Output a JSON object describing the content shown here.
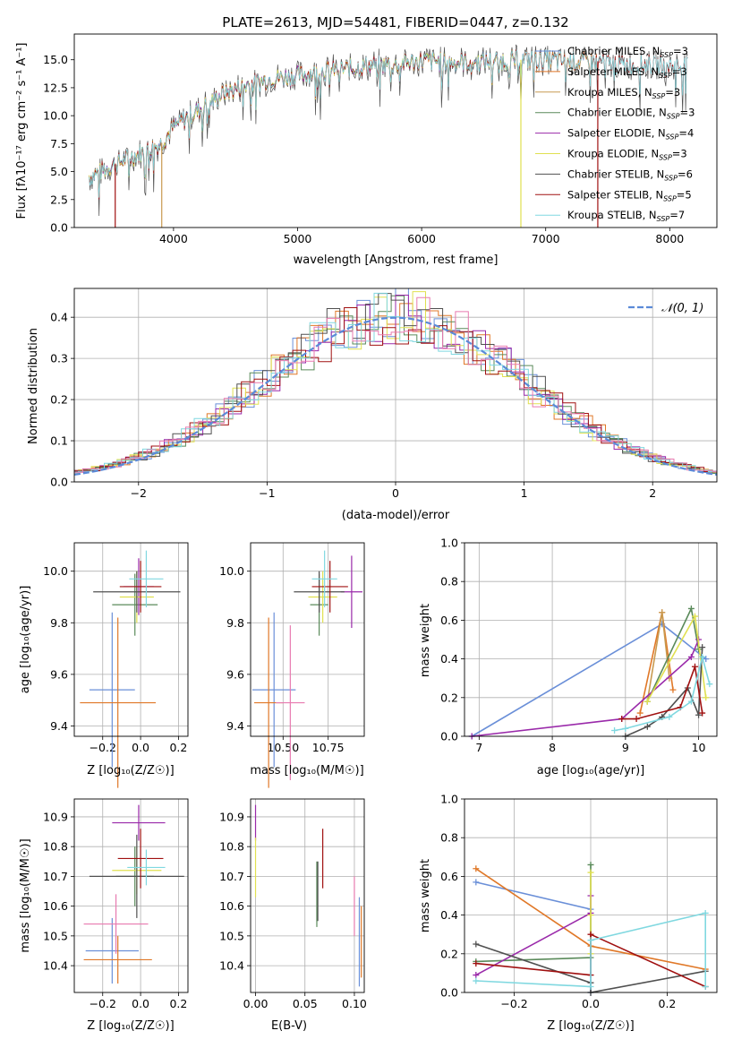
{
  "figure_title": "PLATE=2613, MJD=54481, FIBERID=0447, z=0.132",
  "colors": {
    "Chabrier MILES": "#6a8fd8",
    "Salpeter MILES": "#e07828",
    "Kroupa MILES": "#c89a50",
    "Chabrier ELODIE": "#5a8a5a",
    "Salpeter ELODIE": "#9a2aaa",
    "Kroupa ELODIE": "#e0e050",
    "Chabrier STELIB": "#505050",
    "Salpeter STELIB": "#a01010",
    "Kroupa STELIB": "#80d8e0",
    "pink": "#e87ab0",
    "gaussian": "#5a8ad8"
  },
  "chart_data": [
    {
      "type": "line",
      "title": "PLATE=2613, MJD=54481, FIBERID=0447, z=0.132",
      "xlabel": "wavelength [Angstrom, rest frame]",
      "ylabel": "Flux [f",
      "ylabel_full": "Flux [fλ10⁻¹⁷ erg cm⁻² s⁻¹ A⁻¹]",
      "xlim": [
        3200,
        8380
      ],
      "ylim": [
        0,
        17.3
      ],
      "xticks": [
        4000,
        5000,
        6000,
        7000,
        8000
      ],
      "yticks": [
        0.0,
        2.5,
        5.0,
        7.5,
        10.0,
        12.5,
        15.0
      ],
      "spectrum_anchor_x": [
        3320,
        3500,
        3700,
        3900,
        4000,
        4200,
        4400,
        4600,
        4800,
        5000,
        5200,
        5400,
        5600,
        5800,
        6000,
        6200,
        6400,
        6600,
        6800,
        7000,
        7200,
        7400,
        7600,
        7800,
        8000,
        8150
      ],
      "spectrum_anchor_y": [
        4.5,
        5.5,
        6.5,
        7.5,
        9.0,
        10.5,
        12.0,
        12.8,
        13.3,
        13.6,
        14.0,
        14.2,
        14.5,
        14.6,
        14.9,
        14.8,
        14.8,
        14.9,
        15.0,
        15.0,
        14.8,
        14.9,
        14.6,
        14.6,
        14.5,
        14.4
      ],
      "series": [
        {
          "name": "Chabrier MILES, N",
          "sub": "SSP",
          "suffix": "=3",
          "key": "Chabrier MILES",
          "x_end": 7420
        },
        {
          "name": "Salpeter MILES, N",
          "sub": "SSP",
          "suffix": "=3",
          "key": "Salpeter MILES",
          "x_end": 7420
        },
        {
          "name": "Kroupa MILES, N",
          "sub": "SSP",
          "suffix": "=3",
          "key": "Kroupa MILES",
          "x_end": 7420
        },
        {
          "name": "Chabrier ELODIE, N",
          "sub": "SSP",
          "suffix": "=3",
          "key": "Chabrier ELODIE",
          "x_end": 6800
        },
        {
          "name": "Salpeter ELODIE, N",
          "sub": "SSP",
          "suffix": "=4",
          "key": "Salpeter ELODIE",
          "x_end": 6800
        },
        {
          "name": "Kroupa ELODIE, N",
          "sub": "SSP",
          "suffix": "=3",
          "key": "Kroupa ELODIE",
          "x_end": 6800
        },
        {
          "name": "Chabrier STELIB, N",
          "sub": "SSP",
          "suffix": "=6",
          "key": "Chabrier STELIB",
          "x_end": 8150
        },
        {
          "name": "Salpeter STELIB, N",
          "sub": "SSP",
          "suffix": "=5",
          "key": "Salpeter STELIB",
          "x_end": 8150
        },
        {
          "name": "Kroupa STELIB, N",
          "sub": "SSP",
          "suffix": "=7",
          "key": "Kroupa STELIB",
          "x_end": 8150
        }
      ]
    },
    {
      "type": "line",
      "xlabel": "(data-model)/error",
      "ylabel": "Normed distribution",
      "xlim": [
        -2.5,
        2.5
      ],
      "ylim": [
        0,
        0.47
      ],
      "xticks": [
        -2,
        -1,
        0,
        1,
        2
      ],
      "yticks": [
        0.0,
        0.1,
        0.2,
        0.3,
        0.4
      ],
      "grid": true,
      "legend": "top-right",
      "legend_label": "𝒩(0, 1)",
      "bin_width": 0.1
    },
    {
      "type": "scatter",
      "xlabel": "Z [log₁₀(Z/Z☉)]",
      "ylabel": "age  [log₁₀(age/yr)]",
      "xlim": [
        -0.35,
        0.25
      ],
      "ylim": [
        9.36,
        10.11
      ],
      "xticks": [
        -0.2,
        0.0,
        0.2
      ],
      "yticks": [
        9.4,
        9.6,
        9.8,
        10.0
      ],
      "grid": true,
      "points": [
        {
          "key": "Chabrier MILES",
          "x": -0.15,
          "y": 9.54,
          "xerr": 0.12,
          "yerr": 0.3
        },
        {
          "key": "Salpeter MILES",
          "x": -0.12,
          "y": 9.49,
          "xerr": 0.2,
          "yerr": 0.33
        },
        {
          "key": "Chabrier ELODIE",
          "x": -0.03,
          "y": 9.87,
          "xerr": 0.12,
          "yerr": 0.12
        },
        {
          "key": "Salpeter ELODIE",
          "x": -0.01,
          "y": 9.94,
          "xerr": 0.08,
          "yerr": 0.11
        },
        {
          "key": "Kroupa ELODIE",
          "x": -0.02,
          "y": 9.9,
          "xerr": 0.09,
          "yerr": 0.1
        },
        {
          "key": "Chabrier STELIB",
          "x": -0.02,
          "y": 9.92,
          "xerr": 0.23,
          "yerr": 0.08
        },
        {
          "key": "Salpeter STELIB",
          "x": 0.0,
          "y": 9.94,
          "xerr": 0.11,
          "yerr": 0.1
        },
        {
          "key": "Kroupa STELIB",
          "x": 0.03,
          "y": 9.97,
          "xerr": 0.09,
          "yerr": 0.11
        }
      ]
    },
    {
      "type": "scatter",
      "xlabel": "mass [log₁₀(M/M☉)]",
      "xlim": [
        10.32,
        10.95
      ],
      "ylim": [
        9.36,
        10.11
      ],
      "xticks": [
        10.5,
        10.75
      ],
      "yticks": [
        9.4,
        9.6,
        9.8,
        10.0
      ],
      "grid": true,
      "points": [
        {
          "key": "Chabrier MILES",
          "x": 10.45,
          "y": 9.54,
          "xerr": 0.12,
          "yerr": 0.3
        },
        {
          "key": "Salpeter MILES",
          "x": 10.42,
          "y": 9.49,
          "xerr": 0.08,
          "yerr": 0.33
        },
        {
          "key": "pink",
          "x": 10.54,
          "y": 9.49,
          "xerr": 0.08,
          "yerr": 0.3
        },
        {
          "key": "Chabrier ELODIE",
          "x": 10.7,
          "y": 9.87,
          "xerr": 0.05,
          "yerr": 0.12
        },
        {
          "key": "Salpeter ELODIE",
          "x": 10.88,
          "y": 9.92,
          "xerr": 0.06,
          "yerr": 0.14
        },
        {
          "key": "Kroupa ELODIE",
          "x": 10.72,
          "y": 9.9,
          "xerr": 0.08,
          "yerr": 0.1
        },
        {
          "key": "Chabrier STELIB",
          "x": 10.7,
          "y": 9.92,
          "xerr": 0.14,
          "yerr": 0.08
        },
        {
          "key": "Salpeter STELIB",
          "x": 10.76,
          "y": 9.94,
          "xerr": 0.1,
          "yerr": 0.1
        },
        {
          "key": "Kroupa STELIB",
          "x": 10.73,
          "y": 9.97,
          "xerr": 0.07,
          "yerr": 0.11
        }
      ]
    },
    {
      "type": "line",
      "xlabel": "age  [log₁₀(age/yr)]",
      "ylabel": "mass weight",
      "xlim": [
        6.8,
        10.25
      ],
      "ylim": [
        0,
        1.0
      ],
      "xticks": [
        7,
        8,
        9,
        10
      ],
      "yticks": [
        0.0,
        0.2,
        0.4,
        0.6,
        0.8,
        1.0
      ],
      "grid": true,
      "series": [
        {
          "key": "Chabrier MILES",
          "x": [
            6.9,
            9.5,
            10.1
          ],
          "y": [
            0.0,
            0.58,
            0.4
          ]
        },
        {
          "key": "Salpeter MILES",
          "x": [
            9.2,
            9.5,
            9.65
          ],
          "y": [
            0.12,
            0.64,
            0.24
          ]
        },
        {
          "key": "Kroupa MILES",
          "x": [
            9.3,
            9.5,
            9.6
          ],
          "y": [
            0.18,
            0.64,
            0.3
          ]
        },
        {
          "key": "Chabrier ELODIE",
          "x": [
            9.3,
            9.9,
            10.0
          ],
          "y": [
            0.18,
            0.66,
            0.45
          ]
        },
        {
          "key": "Salpeter ELODIE",
          "x": [
            6.9,
            8.95,
            9.9,
            10.0
          ],
          "y": [
            0.0,
            0.09,
            0.41,
            0.5
          ]
        },
        {
          "key": "Kroupa ELODIE",
          "x": [
            9.3,
            9.95,
            10.1
          ],
          "y": [
            0.18,
            0.62,
            0.2
          ]
        },
        {
          "key": "Chabrier STELIB",
          "x": [
            9.0,
            9.3,
            9.5,
            9.85,
            10.0,
            10.05
          ],
          "y": [
            0.0,
            0.05,
            0.1,
            0.25,
            0.11,
            0.46
          ]
        },
        {
          "key": "Salpeter STELIB",
          "x": [
            8.95,
            9.15,
            9.75,
            9.95,
            10.05
          ],
          "y": [
            0.09,
            0.09,
            0.15,
            0.36,
            0.12
          ]
        },
        {
          "key": "Kroupa STELIB",
          "x": [
            8.85,
            9.0,
            9.6,
            9.9,
            10.05,
            10.15
          ],
          "y": [
            0.03,
            0.04,
            0.1,
            0.18,
            0.41,
            0.27
          ]
        }
      ]
    },
    {
      "type": "scatter",
      "xlabel": "Z [log₁₀(Z/Z☉)]",
      "ylabel": "mass [log₁₀(M/M☉)]",
      "xlim": [
        -0.35,
        0.25
      ],
      "ylim": [
        10.31,
        10.96
      ],
      "xticks": [
        -0.2,
        0.0,
        0.2
      ],
      "yticks": [
        10.4,
        10.5,
        10.6,
        10.7,
        10.8,
        10.9
      ],
      "grid": true,
      "points": [
        {
          "key": "Chabrier MILES",
          "x": -0.15,
          "y": 10.45,
          "xerr": 0.14,
          "yerr": 0.11
        },
        {
          "key": "Salpeter MILES",
          "x": -0.12,
          "y": 10.42,
          "xerr": 0.18,
          "yerr": 0.08
        },
        {
          "key": "pink",
          "x": -0.13,
          "y": 10.54,
          "xerr": 0.17,
          "yerr": 0.1
        },
        {
          "key": "Chabrier ELODIE",
          "x": -0.03,
          "y": 10.7,
          "xerr": 0.1,
          "yerr": 0.1
        },
        {
          "key": "Salpeter ELODIE",
          "x": -0.01,
          "y": 10.88,
          "xerr": 0.14,
          "yerr": 0.06
        },
        {
          "key": "Kroupa ELODIE",
          "x": -0.02,
          "y": 10.72,
          "xerr": 0.13,
          "yerr": 0.08
        },
        {
          "key": "Chabrier STELIB",
          "x": -0.02,
          "y": 10.7,
          "xerr": 0.25,
          "yerr": 0.14
        },
        {
          "key": "Salpeter STELIB",
          "x": 0.0,
          "y": 10.76,
          "xerr": 0.12,
          "yerr": 0.1
        },
        {
          "key": "Kroupa STELIB",
          "x": 0.03,
          "y": 10.73,
          "xerr": 0.1,
          "yerr": 0.06
        }
      ]
    },
    {
      "type": "scatter",
      "xlabel": "E(B-V)",
      "xlim": [
        -0.005,
        0.11
      ],
      "ylim": [
        10.31,
        10.96
      ],
      "xticks": [
        0.0,
        0.05,
        0.1
      ],
      "yticks": [
        10.4,
        10.5,
        10.6,
        10.7,
        10.8,
        10.9
      ],
      "grid": true,
      "points": [
        {
          "key": "Salpeter ELODIE",
          "x": 0.0,
          "y": 10.88,
          "yerr": 0.06
        },
        {
          "key": "Kroupa ELODIE",
          "x": 0.0,
          "y": 10.73,
          "yerr": 0.1
        },
        {
          "key": "Chabrier ELODIE",
          "x": 0.062,
          "y": 10.64,
          "yerr": 0.11
        },
        {
          "key": "Chabrier STELIB",
          "x": 0.063,
          "y": 10.65,
          "yerr": 0.1
        },
        {
          "key": "Salpeter STELIB",
          "x": 0.068,
          "y": 10.76,
          "yerr": 0.1
        },
        {
          "key": "pink",
          "x": 0.1,
          "y": 10.6,
          "yerr": 0.1
        },
        {
          "key": "Chabrier MILES",
          "x": 0.105,
          "y": 10.48,
          "yerr": 0.15
        },
        {
          "key": "Salpeter MILES",
          "x": 0.107,
          "y": 10.48,
          "yerr": 0.12
        }
      ]
    },
    {
      "type": "line",
      "xlabel": "Z [log₁₀(Z/Z☉)]",
      "ylabel": "mass weight",
      "xlim": [
        -0.33,
        0.33
      ],
      "ylim": [
        0,
        1.0
      ],
      "xticks": [
        -0.2,
        0.0,
        0.2
      ],
      "yticks": [
        0.0,
        0.2,
        0.4,
        0.6,
        0.8,
        1.0
      ],
      "grid": true,
      "series": [
        {
          "key": "Chabrier MILES",
          "x": [
            -0.3,
            0.0,
            0.0
          ],
          "y": [
            0.57,
            0.43,
            0.0
          ]
        },
        {
          "key": "Salpeter MILES",
          "x": [
            -0.3,
            0.0,
            0.3
          ],
          "y": [
            0.64,
            0.24,
            0.12
          ]
        },
        {
          "key": "Chabrier ELODIE",
          "x": [
            -0.3,
            0.0,
            0.0
          ],
          "y": [
            0.16,
            0.18,
            0.66
          ]
        },
        {
          "key": "Salpeter ELODIE",
          "x": [
            -0.3,
            0.0,
            0.0
          ],
          "y": [
            0.09,
            0.41,
            0.5
          ]
        },
        {
          "key": "Kroupa ELODIE",
          "x": [
            0.0,
            0.0,
            0.0
          ],
          "y": [
            0.2,
            0.62,
            0.4
          ]
        },
        {
          "key": "Chabrier STELIB",
          "x": [
            -0.3,
            0.0,
            0.0,
            0.3
          ],
          "y": [
            0.25,
            0.05,
            0.0,
            0.11
          ]
        },
        {
          "key": "Salpeter STELIB",
          "x": [
            -0.3,
            0.0,
            0.0,
            0.3
          ],
          "y": [
            0.15,
            0.09,
            0.3,
            0.03
          ]
        },
        {
          "key": "Kroupa STELIB",
          "x": [
            -0.3,
            0.0,
            0.0,
            0.3,
            0.3
          ],
          "y": [
            0.06,
            0.03,
            0.27,
            0.41,
            0.03
          ]
        }
      ]
    }
  ]
}
